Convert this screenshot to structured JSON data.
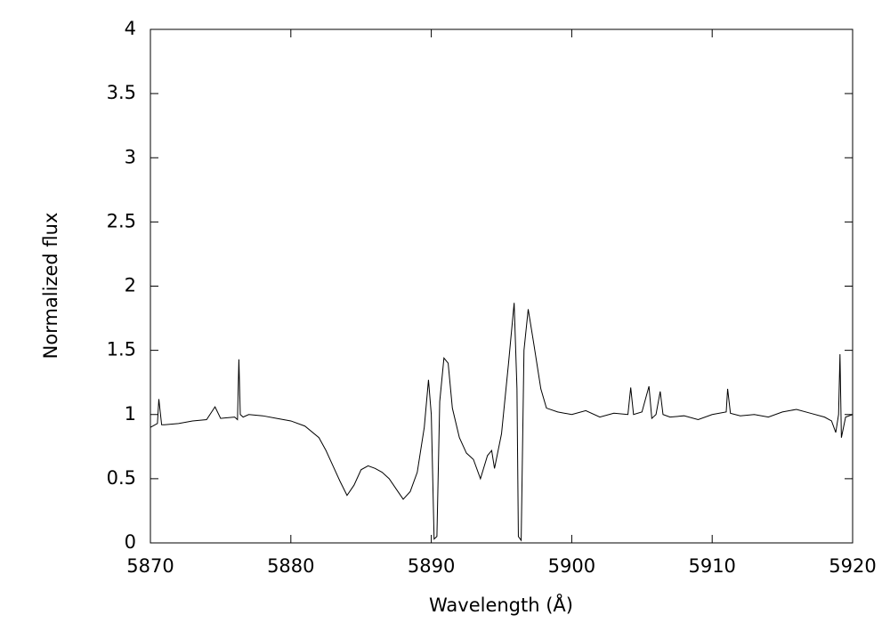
{
  "chart_data": {
    "type": "line",
    "x_label": "Wavelength (Å)",
    "y_label": "Normalized flux",
    "x": [
      5870,
      5870.5,
      5870.6,
      5870.8,
      5871,
      5872,
      5873,
      5874,
      5874.6,
      5875,
      5876,
      5876.2,
      5876.3,
      5876.4,
      5876.6,
      5877,
      5878,
      5879,
      5880,
      5881,
      5882,
      5882.5,
      5883,
      5883.5,
      5884,
      5884.5,
      5885,
      5885.5,
      5886,
      5886.5,
      5887,
      5887.5,
      5888,
      5888.5,
      5889,
      5889.5,
      5889.8,
      5890,
      5890.2,
      5890.4,
      5890.6,
      5890.9,
      5891.2,
      5891.5,
      5892,
      5892.5,
      5893,
      5893.5,
      5894,
      5894.3,
      5894.5,
      5895,
      5895.5,
      5895.9,
      5896.1,
      5896.2,
      5896.4,
      5896.6,
      5896.9,
      5897.3,
      5897.8,
      5898.2,
      5899,
      5900,
      5901,
      5902,
      5903,
      5904,
      5904.2,
      5904.4,
      5905,
      5905.5,
      5905.7,
      5906,
      5906.3,
      5906.5,
      5907,
      5908,
      5909,
      5910,
      5911,
      5911.1,
      5911.3,
      5912,
      5913,
      5914,
      5915,
      5916,
      5917,
      5918,
      5918.5,
      5918.8,
      5919,
      5919.1,
      5919.2,
      5919.5,
      5920
    ],
    "y": [
      0.9,
      0.93,
      1.12,
      0.92,
      0.92,
      0.93,
      0.95,
      0.96,
      1.06,
      0.97,
      0.98,
      0.96,
      1.43,
      1.0,
      0.98,
      1.0,
      0.99,
      0.97,
      0.95,
      0.91,
      0.82,
      0.72,
      0.6,
      0.48,
      0.37,
      0.45,
      0.57,
      0.6,
      0.58,
      0.55,
      0.5,
      0.42,
      0.34,
      0.4,
      0.55,
      0.9,
      1.27,
      1.0,
      0.03,
      0.05,
      1.1,
      1.44,
      1.4,
      1.05,
      0.82,
      0.7,
      0.65,
      0.5,
      0.68,
      0.72,
      0.58,
      0.85,
      1.4,
      1.87,
      1.2,
      0.05,
      0.02,
      1.5,
      1.82,
      1.55,
      1.2,
      1.05,
      1.02,
      1.0,
      1.03,
      0.98,
      1.01,
      1.0,
      1.21,
      1.0,
      1.02,
      1.22,
      0.97,
      1.0,
      1.18,
      1.0,
      0.98,
      0.99,
      0.96,
      1.0,
      1.02,
      1.2,
      1.01,
      0.99,
      1.0,
      0.98,
      1.02,
      1.04,
      1.01,
      0.98,
      0.95,
      0.86,
      1.0,
      1.47,
      0.82,
      0.98,
      1.0
    ],
    "color": "#000000",
    "xlim": [
      5870,
      5920
    ],
    "xticks": [
      5870,
      5880,
      5890,
      5900,
      5910,
      5920
    ],
    "ylim": [
      0,
      4
    ],
    "yticks": [
      0,
      0.5,
      1,
      1.5,
      2,
      2.5,
      3,
      3.5,
      4
    ]
  }
}
